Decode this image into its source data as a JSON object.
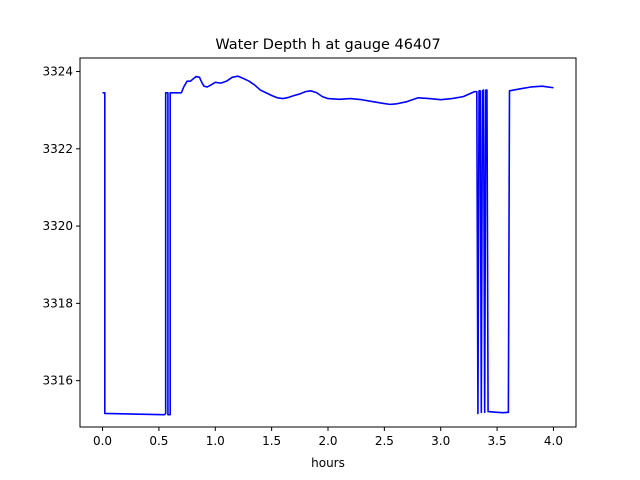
{
  "chart_data": {
    "type": "line",
    "title": "Water Depth h at gauge 46407",
    "xlabel": "hours",
    "ylabel": "",
    "xlim": [
      -0.2,
      4.2
    ],
    "ylim": [
      3314.8,
      3324.35
    ],
    "xticks": [
      {
        "value": 0.0,
        "label": "0.0"
      },
      {
        "value": 0.5,
        "label": "0.5"
      },
      {
        "value": 1.0,
        "label": "1.0"
      },
      {
        "value": 1.5,
        "label": "1.5"
      },
      {
        "value": 2.0,
        "label": "2.0"
      },
      {
        "value": 2.5,
        "label": "2.5"
      },
      {
        "value": 3.0,
        "label": "3.0"
      },
      {
        "value": 3.5,
        "label": "3.5"
      },
      {
        "value": 4.0,
        "label": "4.0"
      }
    ],
    "yticks": [
      {
        "value": 3316,
        "label": "3316"
      },
      {
        "value": 3318,
        "label": "3318"
      },
      {
        "value": 3320,
        "label": "3320"
      },
      {
        "value": 3322,
        "label": "3322"
      },
      {
        "value": 3324,
        "label": "3324"
      }
    ],
    "grid": false,
    "legend": "none",
    "series": [
      {
        "color": "#0000ff",
        "x": [
          0.0,
          0.02,
          0.02,
          0.54,
          0.55,
          0.56,
          0.56,
          0.58,
          0.58,
          0.6,
          0.6,
          0.7,
          0.72,
          0.75,
          0.78,
          0.8,
          0.83,
          0.86,
          0.88,
          0.9,
          0.93,
          0.96,
          1.0,
          1.05,
          1.1,
          1.15,
          1.2,
          1.25,
          1.3,
          1.35,
          1.4,
          1.45,
          1.5,
          1.55,
          1.6,
          1.65,
          1.7,
          1.75,
          1.8,
          1.85,
          1.9,
          1.95,
          2.0,
          2.1,
          2.2,
          2.3,
          2.4,
          2.5,
          2.55,
          2.6,
          2.7,
          2.8,
          2.9,
          3.0,
          3.1,
          3.2,
          3.3,
          3.32,
          3.33,
          3.34,
          3.35,
          3.36,
          3.37,
          3.38,
          3.39,
          3.4,
          3.41,
          3.42,
          3.5,
          3.55,
          3.6,
          3.61,
          3.7,
          3.8,
          3.9,
          4.0
        ],
        "y": [
          3323.45,
          3323.45,
          3315.15,
          3315.12,
          3315.12,
          3315.15,
          3323.45,
          3323.45,
          3315.12,
          3315.12,
          3323.45,
          3323.45,
          3323.6,
          3323.75,
          3323.75,
          3323.8,
          3323.87,
          3323.85,
          3323.72,
          3323.62,
          3323.6,
          3323.65,
          3323.72,
          3323.7,
          3323.75,
          3323.85,
          3323.88,
          3323.82,
          3323.75,
          3323.65,
          3323.52,
          3323.45,
          3323.38,
          3323.32,
          3323.3,
          3323.33,
          3323.38,
          3323.42,
          3323.48,
          3323.5,
          3323.45,
          3323.35,
          3323.3,
          3323.28,
          3323.3,
          3323.27,
          3323.22,
          3323.17,
          3323.15,
          3323.16,
          3323.22,
          3323.32,
          3323.3,
          3323.27,
          3323.3,
          3323.35,
          3323.48,
          3323.48,
          3315.15,
          3323.5,
          3323.5,
          3315.18,
          3323.5,
          3323.52,
          3315.18,
          3323.52,
          3323.52,
          3315.2,
          3315.18,
          3315.17,
          3315.18,
          3323.5,
          3323.55,
          3323.6,
          3323.62,
          3323.58
        ]
      }
    ]
  }
}
